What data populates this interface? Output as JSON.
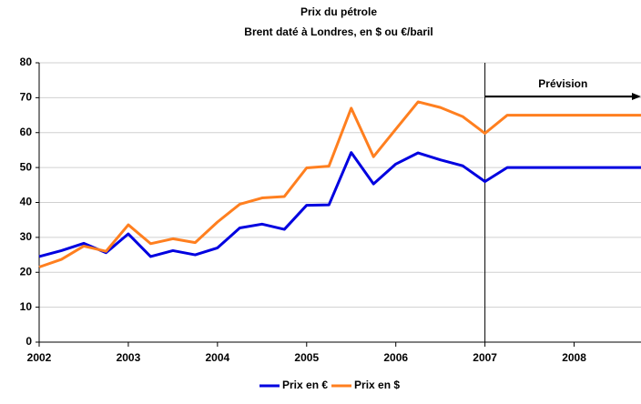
{
  "chart_data": {
    "type": "line",
    "title": "Prix du pétrole",
    "subtitle": "Brent daté à Londres, en $ ou €/baril",
    "x": [
      2002,
      2002.25,
      2002.5,
      2002.75,
      2003,
      2003.25,
      2003.5,
      2003.75,
      2004,
      2004.25,
      2004.5,
      2004.75,
      2005,
      2005.25,
      2005.5,
      2005.75,
      2006,
      2006.25,
      2006.5,
      2006.75,
      2007,
      2007.25,
      2007.5,
      2007.75,
      2008,
      2008.25,
      2008.5,
      2008.75
    ],
    "series": [
      {
        "name": "Prix en €",
        "color": "#0000e0",
        "values": [
          24.5,
          26.2,
          28.3,
          25.6,
          31,
          24.5,
          26.2,
          25,
          27,
          32.7,
          33.8,
          32.3,
          39.2,
          39.3,
          54.3,
          45.3,
          51,
          54.2,
          52.2,
          50.5,
          46,
          50,
          50,
          50,
          50,
          50,
          50,
          50
        ]
      },
      {
        "name": "Prix en $",
        "color": "#ff7f1f",
        "values": [
          21.5,
          23.7,
          27.5,
          26,
          33.6,
          28.2,
          29.6,
          28.5,
          34.4,
          39.5,
          41.3,
          41.7,
          49.9,
          50.4,
          67,
          53.1,
          61,
          68.8,
          67.2,
          64.6,
          59.8,
          65,
          65,
          65,
          65,
          65,
          65,
          65
        ]
      }
    ],
    "xlim": [
      2002,
      2008.75
    ],
    "xticks": [
      2002,
      2003,
      2004,
      2005,
      2006,
      2007,
      2008
    ],
    "ylim": [
      0,
      80
    ],
    "yticks": [
      0,
      10,
      20,
      30,
      40,
      50,
      60,
      70,
      80
    ],
    "grid": true,
    "annotation": {
      "text": "Prévision",
      "x": 2007
    },
    "legend": "bottom"
  }
}
